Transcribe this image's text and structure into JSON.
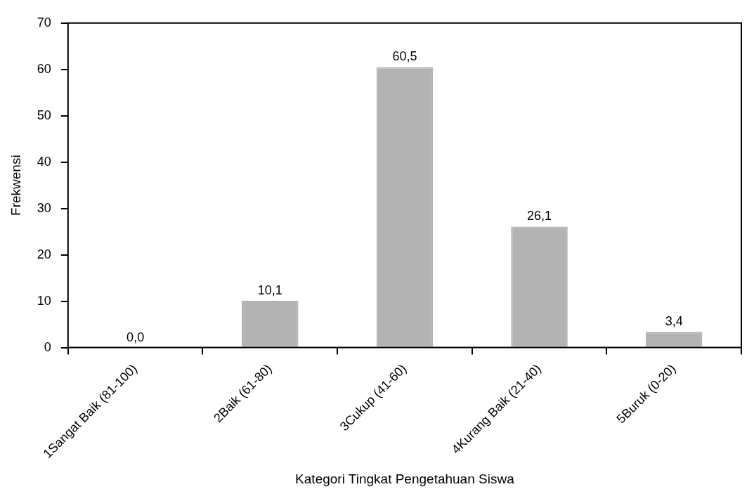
{
  "chart_data": {
    "type": "bar",
    "xlabel": "Kategori Tingkat Pengetahuan Siswa",
    "ylabel": "Frekwensi",
    "categories": [
      "1Sangat Baik (81-100)",
      "2Baik (61-80)",
      "3Cukup (41-60)",
      "4Kurang Baik (21-40)",
      "5Buruk (0-20)"
    ],
    "values": [
      0.0,
      10.1,
      60.5,
      26.1,
      3.4
    ],
    "value_labels": [
      "0,0",
      "10,1",
      "60,5",
      "26,1",
      "3,4"
    ],
    "color": "#b3b3b3",
    "ylim": [
      0,
      70
    ],
    "yticks": [
      0,
      10,
      20,
      30,
      40,
      50,
      60,
      70
    ],
    "grid": false,
    "legend": false
  }
}
